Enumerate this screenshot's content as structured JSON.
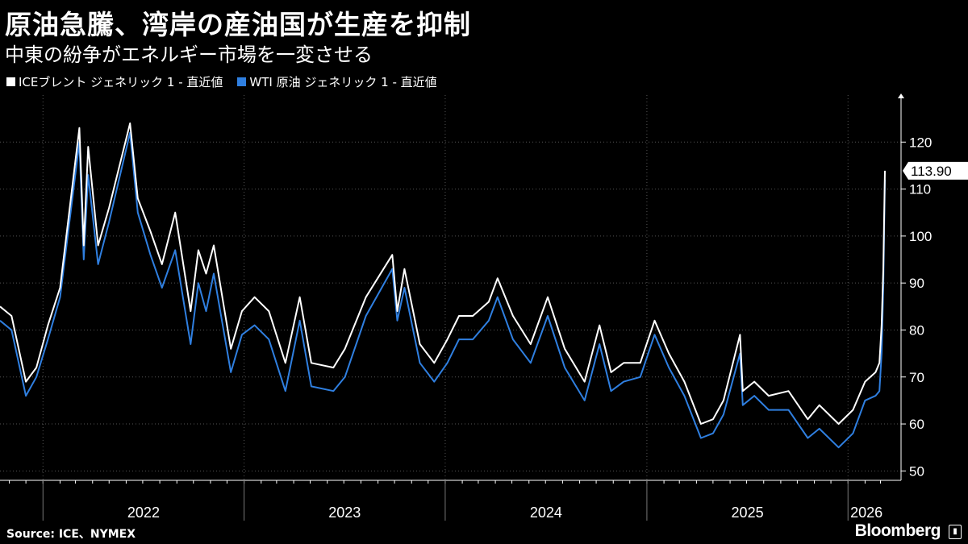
{
  "header": {
    "title": "原油急騰、湾岸の産油国が生産を抑制",
    "subtitle": "中東の紛争がエネルギー市場を一変させる"
  },
  "footer": {
    "source": "Source: ICE、NYMEX",
    "brand": "Bloomberg"
  },
  "colors": {
    "background": "#000000",
    "brent": "#ffffff",
    "wti": "#2f7fe0",
    "grid": "#555555"
  },
  "chart_data": {
    "type": "line",
    "title": "原油急騰、湾岸の産油国が生産を抑制",
    "subtitle": "中東の紛争がエネルギー市場を一変させる",
    "xlabel": "",
    "ylabel": "",
    "x_range": [
      "2021-10-15",
      "2026-03-09"
    ],
    "ylim": [
      48,
      130
    ],
    "yticks": [
      50,
      60,
      70,
      80,
      90,
      100,
      110,
      120
    ],
    "y_axis_side": "right",
    "grid": "dotted",
    "legend_placement": "top-left",
    "x_tick_labels": [
      "2022",
      "2023",
      "2024",
      "2025",
      "2026"
    ],
    "last_value_label": "113.90",
    "series": [
      {
        "name": "ICEブレント ジェネリック 1 - 直近値",
        "color": "#ffffff",
        "points": [
          [
            "2021-10-15",
            85
          ],
          [
            "2021-11-05",
            83
          ],
          [
            "2021-12-01",
            69
          ],
          [
            "2021-12-20",
            72
          ],
          [
            "2022-01-10",
            81
          ],
          [
            "2022-02-01",
            89
          ],
          [
            "2022-03-08",
            123
          ],
          [
            "2022-03-16",
            98
          ],
          [
            "2022-03-24",
            119
          ],
          [
            "2022-04-11",
            98
          ],
          [
            "2022-05-01",
            106
          ],
          [
            "2022-06-08",
            124
          ],
          [
            "2022-06-22",
            108
          ],
          [
            "2022-07-15",
            101
          ],
          [
            "2022-08-05",
            94
          ],
          [
            "2022-08-29",
            105
          ],
          [
            "2022-09-26",
            84
          ],
          [
            "2022-10-10",
            97
          ],
          [
            "2022-10-24",
            92
          ],
          [
            "2022-11-07",
            98
          ],
          [
            "2022-12-08",
            76
          ],
          [
            "2022-12-28",
            84
          ],
          [
            "2023-01-20",
            87
          ],
          [
            "2023-02-15",
            84
          ],
          [
            "2023-03-17",
            73
          ],
          [
            "2023-04-12",
            87
          ],
          [
            "2023-05-03",
            73
          ],
          [
            "2023-06-12",
            72
          ],
          [
            "2023-07-03",
            76
          ],
          [
            "2023-08-10",
            87
          ],
          [
            "2023-09-27",
            96
          ],
          [
            "2023-10-06",
            84
          ],
          [
            "2023-10-19",
            93
          ],
          [
            "2023-11-16",
            77
          ],
          [
            "2023-12-12",
            73
          ],
          [
            "2024-01-05",
            78
          ],
          [
            "2024-01-26",
            83
          ],
          [
            "2024-02-20",
            83
          ],
          [
            "2024-03-20",
            86
          ],
          [
            "2024-04-05",
            91
          ],
          [
            "2024-05-03",
            83
          ],
          [
            "2024-06-04",
            77
          ],
          [
            "2024-07-05",
            87
          ],
          [
            "2024-08-05",
            76
          ],
          [
            "2024-09-10",
            69
          ],
          [
            "2024-10-07",
            81
          ],
          [
            "2024-10-28",
            71
          ],
          [
            "2024-11-20",
            73
          ],
          [
            "2024-12-20",
            73
          ],
          [
            "2025-01-15",
            82
          ],
          [
            "2025-02-10",
            75
          ],
          [
            "2025-03-10",
            69
          ],
          [
            "2025-04-09",
            60
          ],
          [
            "2025-05-01",
            61
          ],
          [
            "2025-05-20",
            65
          ],
          [
            "2025-06-19",
            79
          ],
          [
            "2025-06-24",
            67
          ],
          [
            "2025-07-15",
            69
          ],
          [
            "2025-08-10",
            66
          ],
          [
            "2025-09-15",
            67
          ],
          [
            "2025-10-20",
            61
          ],
          [
            "2025-11-10",
            64
          ],
          [
            "2025-12-15",
            60
          ],
          [
            "2026-01-10",
            63
          ],
          [
            "2026-02-01",
            69
          ],
          [
            "2026-02-20",
            71
          ],
          [
            "2026-02-27",
            73
          ],
          [
            "2026-03-03",
            81
          ],
          [
            "2026-03-06",
            93
          ],
          [
            "2026-03-09",
            113.9
          ]
        ]
      },
      {
        "name": "WTI 原油 ジェネリック 1 - 直近値",
        "color": "#2f7fe0",
        "points": [
          [
            "2021-10-15",
            82
          ],
          [
            "2021-11-05",
            80
          ],
          [
            "2021-12-01",
            66
          ],
          [
            "2021-12-20",
            70
          ],
          [
            "2022-01-10",
            78
          ],
          [
            "2022-02-01",
            87
          ],
          [
            "2022-03-08",
            120
          ],
          [
            "2022-03-16",
            95
          ],
          [
            "2022-03-24",
            113
          ],
          [
            "2022-04-11",
            94
          ],
          [
            "2022-05-01",
            103
          ],
          [
            "2022-06-08",
            122
          ],
          [
            "2022-06-22",
            105
          ],
          [
            "2022-07-15",
            96
          ],
          [
            "2022-08-05",
            89
          ],
          [
            "2022-08-29",
            97
          ],
          [
            "2022-09-26",
            77
          ],
          [
            "2022-10-10",
            90
          ],
          [
            "2022-10-24",
            84
          ],
          [
            "2022-11-07",
            92
          ],
          [
            "2022-12-08",
            71
          ],
          [
            "2022-12-28",
            79
          ],
          [
            "2023-01-20",
            81
          ],
          [
            "2023-02-15",
            78
          ],
          [
            "2023-03-17",
            67
          ],
          [
            "2023-04-12",
            82
          ],
          [
            "2023-05-03",
            68
          ],
          [
            "2023-06-12",
            67
          ],
          [
            "2023-07-03",
            70
          ],
          [
            "2023-08-10",
            83
          ],
          [
            "2023-09-27",
            93
          ],
          [
            "2023-10-06",
            82
          ],
          [
            "2023-10-19",
            89
          ],
          [
            "2023-11-16",
            73
          ],
          [
            "2023-12-12",
            69
          ],
          [
            "2024-01-05",
            73
          ],
          [
            "2024-01-26",
            78
          ],
          [
            "2024-02-20",
            78
          ],
          [
            "2024-03-20",
            82
          ],
          [
            "2024-04-05",
            87
          ],
          [
            "2024-05-03",
            78
          ],
          [
            "2024-06-04",
            73
          ],
          [
            "2024-07-05",
            83
          ],
          [
            "2024-08-05",
            72
          ],
          [
            "2024-09-10",
            65
          ],
          [
            "2024-10-07",
            77
          ],
          [
            "2024-10-28",
            67
          ],
          [
            "2024-11-20",
            69
          ],
          [
            "2024-12-20",
            70
          ],
          [
            "2025-01-15",
            79
          ],
          [
            "2025-02-10",
            72
          ],
          [
            "2025-03-10",
            66
          ],
          [
            "2025-04-09",
            57
          ],
          [
            "2025-05-01",
            58
          ],
          [
            "2025-05-20",
            62
          ],
          [
            "2025-06-19",
            75
          ],
          [
            "2025-06-24",
            64
          ],
          [
            "2025-07-15",
            66
          ],
          [
            "2025-08-10",
            63
          ],
          [
            "2025-09-15",
            63
          ],
          [
            "2025-10-20",
            57
          ],
          [
            "2025-11-10",
            59
          ],
          [
            "2025-12-15",
            55
          ],
          [
            "2026-01-10",
            58
          ],
          [
            "2026-02-01",
            65
          ],
          [
            "2026-02-20",
            66
          ],
          [
            "2026-02-27",
            67
          ],
          [
            "2026-03-03",
            75
          ],
          [
            "2026-03-06",
            89
          ],
          [
            "2026-03-09",
            112
          ]
        ]
      }
    ]
  }
}
